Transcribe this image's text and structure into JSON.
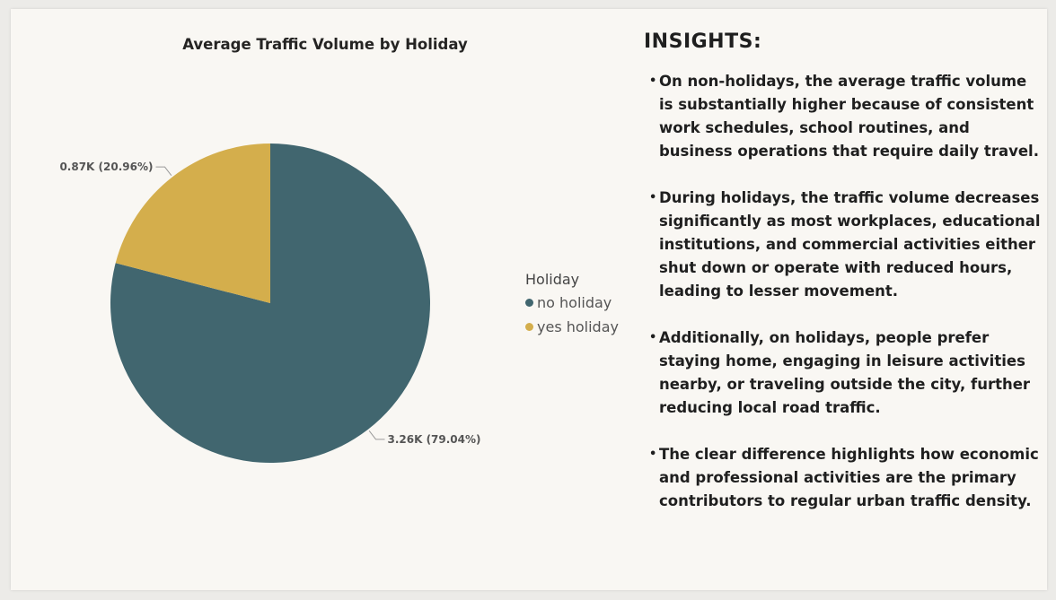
{
  "chart_data": {
    "type": "pie",
    "title": "Average Traffic Volume by Holiday",
    "legend_title": "Holiday",
    "legend_position": "right",
    "slices": [
      {
        "name": "no holiday",
        "value": 3.26,
        "value_label": "3.26K",
        "percent_label": "79.04%",
        "percent": 79.04,
        "color": "#41666f"
      },
      {
        "name": "yes holiday",
        "value": 0.87,
        "value_label": "0.87K",
        "percent_label": "20.96%",
        "percent": 20.96,
        "color": "#d4ae4c"
      }
    ]
  },
  "insights": {
    "heading": "INSIGHTS:",
    "bullet": "•",
    "items": [
      "On non-holidays, the average traffic volume is substantially higher because of consistent work schedules, school routines, and business operations that require daily travel.",
      "During holidays, the traffic volume decreases significantly as most workplaces, educational institutions, and commercial activities either shut down or operate with reduced hours, leading to lesser movement.",
      "Additionally, on holidays, people prefer staying home, engaging in leisure activities nearby, or traveling outside the city, further reducing local road traffic.",
      "The clear difference highlights how economic and professional activities are the primary contributors to regular urban traffic density."
    ]
  }
}
